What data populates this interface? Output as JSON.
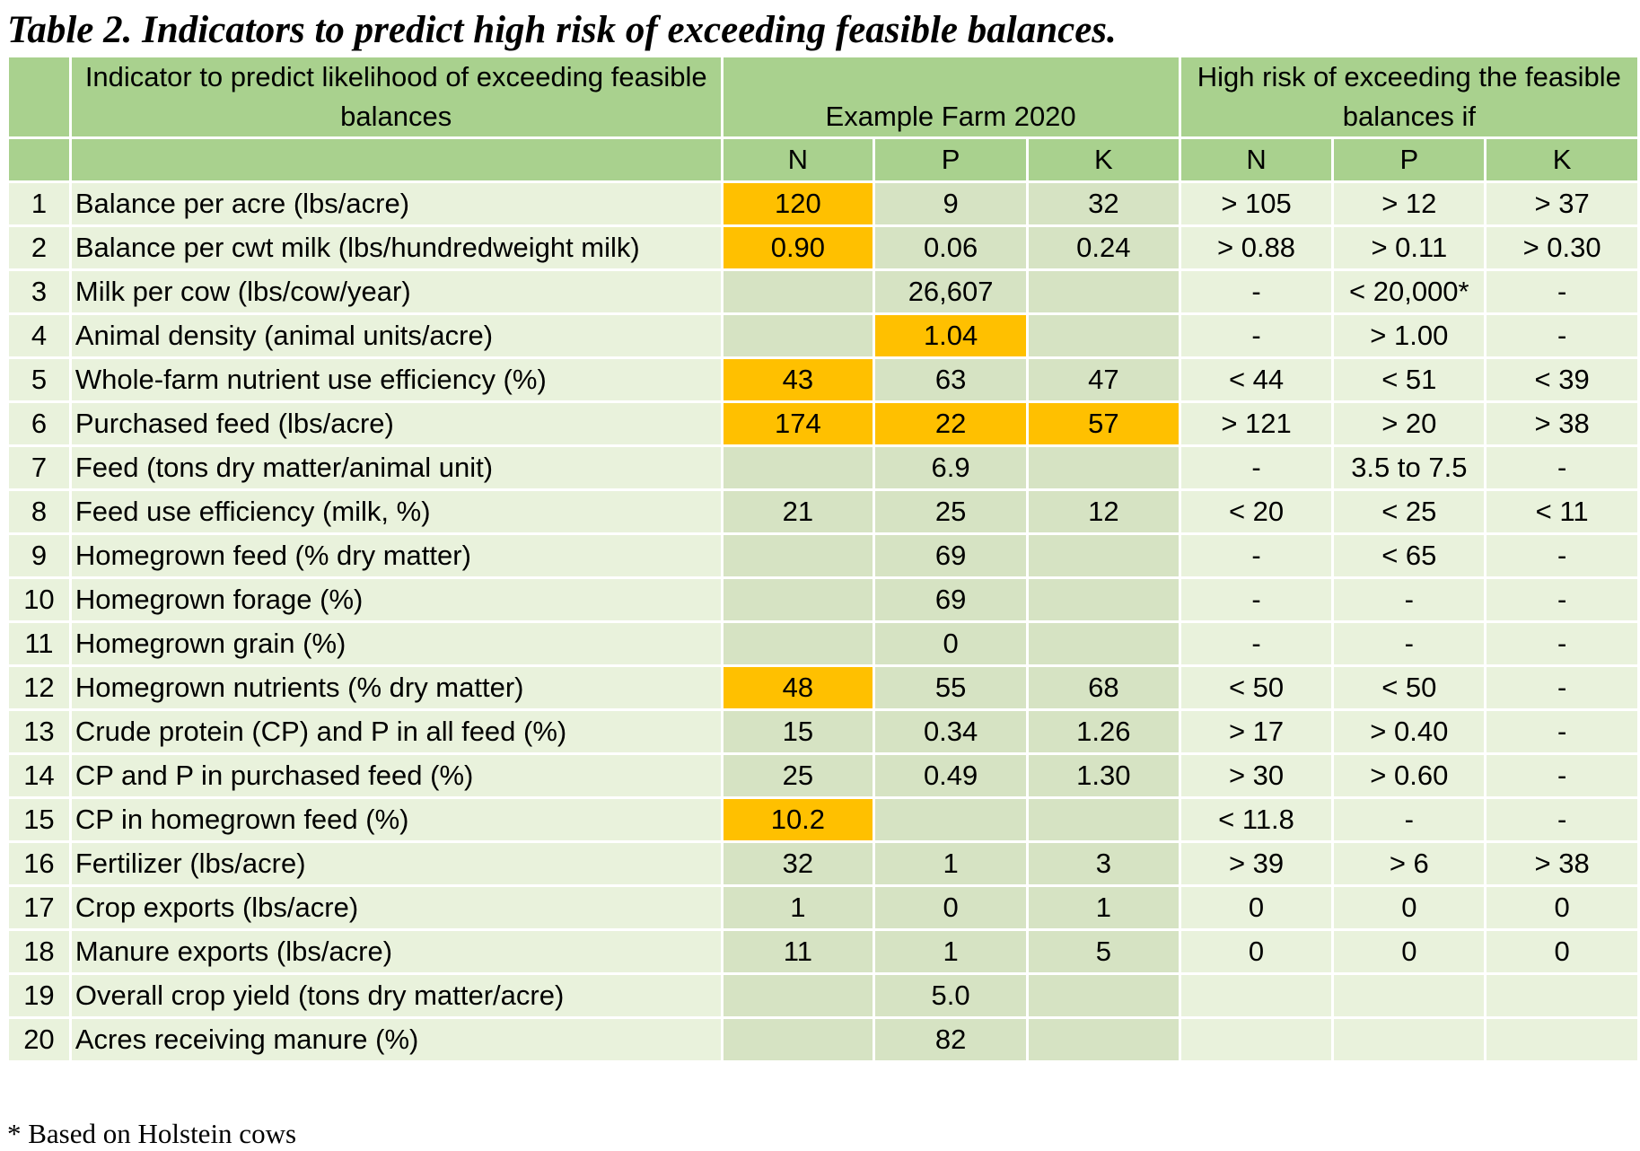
{
  "title": "Table 2. Indicators to predict high risk of exceeding feasible balances.",
  "header": {
    "indicator_label": "Indicator to predict likelihood of exceeding feasible balances",
    "farm_label": "Example Farm 2020",
    "risk_label": "High risk of exceeding the feasible balances if",
    "sub": [
      "N",
      "P",
      "K",
      "N",
      "P",
      "K"
    ]
  },
  "colors": {
    "header": "#a9d18e",
    "row": "#e9f2dc",
    "farm_cell": "#d6e3c3",
    "highlight": "#ffc000"
  },
  "rows": [
    {
      "num": "1",
      "name": "Balance per acre (lbs/acre)",
      "farm": [
        "120",
        "9",
        "32"
      ],
      "risk": [
        "> 105",
        "> 12",
        "> 37"
      ],
      "highlight": [
        true,
        false,
        false
      ]
    },
    {
      "num": "2",
      "name": "Balance per cwt milk (lbs/hundredweight milk)",
      "farm": [
        "0.90",
        "0.06",
        "0.24"
      ],
      "risk": [
        "> 0.88",
        "> 0.11",
        "> 0.30"
      ],
      "highlight": [
        true,
        false,
        false
      ]
    },
    {
      "num": "3",
      "name": "Milk per cow (lbs/cow/year)",
      "farm": [
        "",
        "26,607",
        ""
      ],
      "risk": [
        "-",
        "< 20,000*",
        "-"
      ],
      "highlight": [
        false,
        false,
        false
      ]
    },
    {
      "num": "4",
      "name": "Animal density (animal units/acre)",
      "farm": [
        "",
        "1.04",
        ""
      ],
      "risk": [
        "-",
        "> 1.00",
        "-"
      ],
      "highlight": [
        false,
        true,
        false
      ]
    },
    {
      "num": "5",
      "name": "Whole-farm nutrient use efficiency (%)",
      "farm": [
        "43",
        "63",
        "47"
      ],
      "risk": [
        "< 44",
        "< 51",
        "< 39"
      ],
      "highlight": [
        true,
        false,
        false
      ]
    },
    {
      "num": "6",
      "name": "Purchased feed (lbs/acre)",
      "farm": [
        "174",
        "22",
        "57"
      ],
      "risk": [
        "> 121",
        "> 20",
        "> 38"
      ],
      "highlight": [
        true,
        true,
        true
      ]
    },
    {
      "num": "7",
      "name": "Feed (tons dry matter/animal unit)",
      "farm": [
        "",
        "6.9",
        ""
      ],
      "risk": [
        "-",
        "3.5 to 7.5",
        "-"
      ],
      "highlight": [
        false,
        false,
        false
      ]
    },
    {
      "num": "8",
      "name": "Feed use efficiency (milk, %)",
      "farm": [
        "21",
        "25",
        "12"
      ],
      "risk": [
        "< 20",
        "< 25",
        "< 11"
      ],
      "highlight": [
        false,
        false,
        false
      ]
    },
    {
      "num": "9",
      "name": "Homegrown feed (% dry matter)",
      "farm": [
        "",
        "69",
        ""
      ],
      "risk": [
        "-",
        "< 65",
        "-"
      ],
      "highlight": [
        false,
        false,
        false
      ]
    },
    {
      "num": "10",
      "name": "Homegrown forage (%)",
      "farm": [
        "",
        "69",
        ""
      ],
      "risk": [
        "-",
        "-",
        "-"
      ],
      "highlight": [
        false,
        false,
        false
      ]
    },
    {
      "num": "11",
      "name": "Homegrown grain (%)",
      "farm": [
        "",
        "0",
        ""
      ],
      "risk": [
        "-",
        "-",
        "-"
      ],
      "highlight": [
        false,
        false,
        false
      ]
    },
    {
      "num": "12",
      "name": "Homegrown nutrients (% dry matter)",
      "farm": [
        "48",
        "55",
        "68"
      ],
      "risk": [
        "< 50",
        "< 50",
        "-"
      ],
      "highlight": [
        true,
        false,
        false
      ]
    },
    {
      "num": "13",
      "name": "Crude protein (CP) and P in all feed (%)",
      "farm": [
        "15",
        "0.34",
        "1.26"
      ],
      "risk": [
        "> 17",
        "> 0.40",
        "-"
      ],
      "highlight": [
        false,
        false,
        false
      ]
    },
    {
      "num": "14",
      "name": "CP and P in purchased feed (%)",
      "farm": [
        "25",
        "0.49",
        "1.30"
      ],
      "risk": [
        "> 30",
        "> 0.60",
        "-"
      ],
      "highlight": [
        false,
        false,
        false
      ]
    },
    {
      "num": "15",
      "name": "CP in homegrown feed (%)",
      "farm": [
        "10.2",
        "",
        ""
      ],
      "risk": [
        "< 11.8",
        "-",
        "-"
      ],
      "highlight": [
        true,
        false,
        false
      ]
    },
    {
      "num": "16",
      "name": "Fertilizer (lbs/acre)",
      "farm": [
        "32",
        "1",
        "3"
      ],
      "risk": [
        "> 39",
        "> 6",
        "> 38"
      ],
      "highlight": [
        false,
        false,
        false
      ]
    },
    {
      "num": "17",
      "name": "Crop exports (lbs/acre)",
      "farm": [
        "1",
        "0",
        "1"
      ],
      "risk": [
        "0",
        "0",
        "0"
      ],
      "highlight": [
        false,
        false,
        false
      ]
    },
    {
      "num": "18",
      "name": "Manure exports (lbs/acre)",
      "farm": [
        "11",
        "1",
        "5"
      ],
      "risk": [
        "0",
        "0",
        "0"
      ],
      "highlight": [
        false,
        false,
        false
      ]
    },
    {
      "num": "19",
      "name": "Overall crop yield (tons dry matter/acre)",
      "farm": [
        "",
        "5.0",
        ""
      ],
      "risk": [
        "",
        "",
        ""
      ],
      "highlight": [
        false,
        false,
        false
      ]
    },
    {
      "num": "20",
      "name": "Acres receiving manure (%)",
      "farm": [
        "",
        "82",
        ""
      ],
      "risk": [
        "",
        "",
        ""
      ],
      "highlight": [
        false,
        false,
        false
      ]
    }
  ],
  "footnote": "* Based on Holstein cows"
}
